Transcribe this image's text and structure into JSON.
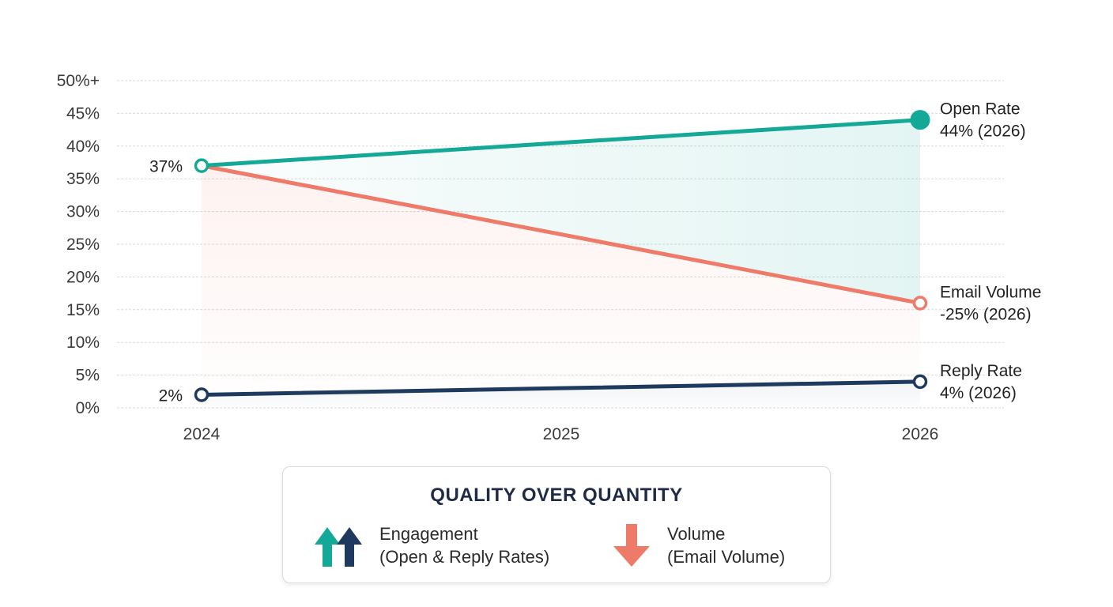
{
  "chart_data": {
    "type": "line",
    "x": [
      "2024",
      "2025",
      "2026"
    ],
    "ylim": [
      0,
      50
    ],
    "y_ticks": [
      "0%",
      "5%",
      "10%",
      "15%",
      "20%",
      "25%",
      "30%",
      "35%",
      "40%",
      "45%",
      "50%+"
    ],
    "grid": true,
    "series": [
      {
        "name": "Open Rate",
        "values": [
          37,
          40.5,
          44
        ],
        "color": "#14a896",
        "start_label": "37%",
        "end_label_1": "Open Rate",
        "end_label_2": "44% (2026)"
      },
      {
        "name": "Email Volume",
        "values": [
          37,
          26.5,
          16
        ],
        "color": "#ee7b6a",
        "start_label": "",
        "end_label_1": "Email Volume",
        "end_label_2": "-25% (2026)"
      },
      {
        "name": "Reply Rate",
        "values": [
          2,
          3,
          4
        ],
        "color": "#1f3a5f",
        "start_label": "2%",
        "end_label_1": "Reply Rate",
        "end_label_2": "4% (2026)"
      }
    ]
  },
  "legend": {
    "title": "QUALITY OVER QUANTITY",
    "items": [
      {
        "line1": "Engagement",
        "line2": "(Open & Reply Rates)",
        "icon": "up-arrows-icon"
      },
      {
        "line1": "Volume",
        "line2": "(Email Volume)",
        "icon": "down-arrow-icon"
      }
    ]
  },
  "colors": {
    "teal": "#14a896",
    "navy": "#1f3a5f",
    "coral": "#ee7b6a"
  }
}
